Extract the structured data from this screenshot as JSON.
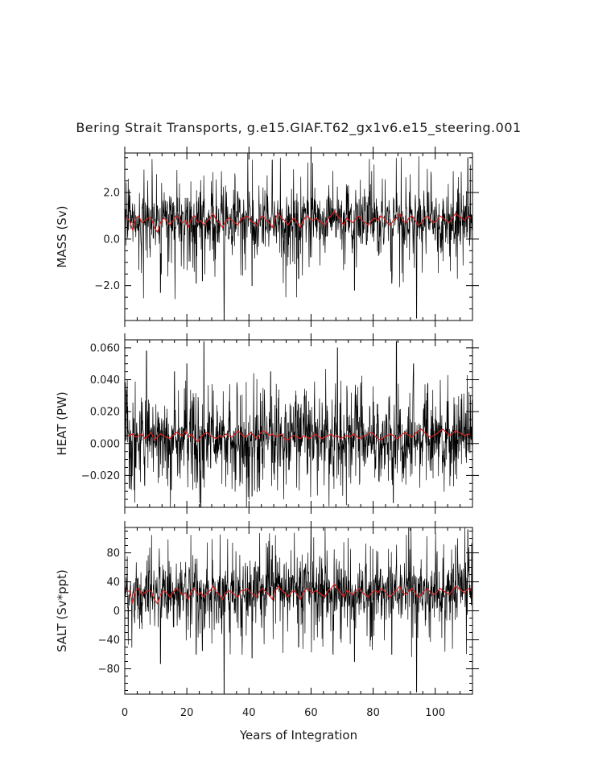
{
  "chart_data": {
    "type": "line",
    "title": "Bering Strait Transports, g.e15.GIAF.T62_gx1v6.e15_steering.001",
    "xlabel": "Years of Integration",
    "xlim": [
      0,
      112
    ],
    "x_ticks": [
      0,
      20,
      40,
      60,
      80,
      100
    ],
    "x_tick_labels": [
      "0",
      "20",
      "40",
      "60",
      "80",
      "100"
    ],
    "series_colors": {
      "monthly": "#000000",
      "annual": "#d42020"
    },
    "panels": [
      {
        "name": "mass",
        "ylabel": "MASS (Sv)",
        "ylim": [
          -3.5,
          3.7
        ],
        "y_ticks": [
          2.0,
          0.0,
          -2.0
        ],
        "y_tick_labels": [
          "2.0",
          "0.0",
          "−2.0"
        ],
        "mean": 0.8,
        "noise_std": 0.5,
        "spike_frequency": 0.18,
        "spikes": [
          {
            "x": 11.5,
            "y": -2.3
          },
          {
            "x": 23.0,
            "y": -1.9
          },
          {
            "x": 25.0,
            "y": -1.8
          },
          {
            "x": 32.0,
            "y": -3.4
          },
          {
            "x": 41.0,
            "y": -2.0
          },
          {
            "x": 47.5,
            "y": 3.4
          },
          {
            "x": 56.0,
            "y": -1.7
          },
          {
            "x": 60.0,
            "y": 3.6
          },
          {
            "x": 74.0,
            "y": -2.2
          },
          {
            "x": 86.0,
            "y": -1.9
          },
          {
            "x": 94.0,
            "y": -3.4
          },
          {
            "x": 110.5,
            "y": 3.5
          }
        ],
        "annual_values": [
          0.9,
          0.8,
          0.4,
          0.9,
          1.0,
          0.7,
          0.8,
          0.9,
          0.9,
          0.5,
          0.3,
          0.7,
          0.9,
          0.8,
          0.6,
          0.8,
          1.0,
          0.9,
          0.7,
          0.8,
          0.5,
          0.9,
          1.0,
          0.7,
          0.8,
          0.6,
          0.8,
          0.9,
          1.1,
          0.8,
          0.7,
          0.5,
          0.8,
          0.9,
          0.8,
          0.7,
          0.6,
          0.9,
          0.9,
          1.0,
          0.8,
          0.7,
          0.6,
          0.9,
          1.0,
          0.8,
          0.7,
          0.5,
          0.9,
          1.1,
          0.9,
          0.8,
          0.6,
          0.8,
          0.9,
          0.7,
          0.5,
          0.8,
          1.0,
          0.9,
          0.8,
          0.9,
          0.8,
          0.7,
          0.6,
          0.9,
          1.0,
          1.2,
          1.0,
          0.8,
          0.6,
          0.9,
          0.8,
          0.7,
          0.9,
          1.0,
          0.8,
          0.7,
          0.6,
          0.8,
          0.9,
          0.8,
          1.0,
          0.9,
          0.7,
          0.6,
          0.8,
          0.9,
          1.1,
          0.8,
          0.7,
          0.9,
          1.0,
          0.8,
          0.6,
          0.7,
          0.9,
          1.0,
          0.8,
          0.7,
          0.8,
          1.0,
          0.9,
          0.8,
          0.7,
          0.9,
          1.1,
          1.0,
          0.9,
          0.8,
          1.0,
          0.9
        ]
      },
      {
        "name": "heat",
        "ylabel": "HEAT (PW)",
        "ylim": [
          -0.04,
          0.065
        ],
        "y_ticks": [
          0.06,
          0.04,
          0.02,
          0.0,
          -0.02
        ],
        "y_tick_labels": [
          "0.060",
          "0.040",
          "0.020",
          "0.000",
          "−0.020"
        ],
        "mean": 0.004,
        "noise_std": 0.007,
        "spike_frequency": 0.3,
        "spikes": [
          {
            "x": 7.0,
            "y": 0.058
          },
          {
            "x": 16.0,
            "y": 0.045
          },
          {
            "x": 20.0,
            "y": 0.05
          },
          {
            "x": 24.5,
            "y": -0.04
          },
          {
            "x": 25.5,
            "y": 0.064
          },
          {
            "x": 15.0,
            "y": -0.029
          },
          {
            "x": 41.0,
            "y": -0.033
          },
          {
            "x": 47.0,
            "y": 0.045
          },
          {
            "x": 68.5,
            "y": 0.06
          },
          {
            "x": 86.5,
            "y": -0.037
          },
          {
            "x": 87.5,
            "y": 0.064
          },
          {
            "x": 93.0,
            "y": 0.05
          }
        ],
        "annual_values": [
          0.005,
          0.005,
          0.006,
          0.004,
          0.005,
          0.006,
          0.003,
          0.005,
          0.007,
          0.002,
          0.004,
          0.006,
          0.005,
          0.004,
          0.003,
          0.005,
          0.007,
          0.006,
          0.005,
          0.008,
          0.004,
          0.006,
          0.003,
          0.001,
          0.004,
          0.006,
          0.007,
          0.005,
          0.004,
          0.003,
          0.005,
          0.004,
          0.006,
          0.005,
          0.004,
          0.006,
          0.008,
          0.006,
          0.004,
          0.005,
          0.007,
          0.005,
          0.003,
          0.006,
          0.008,
          0.007,
          0.005,
          0.006,
          0.004,
          0.005,
          0.006,
          0.003,
          0.002,
          0.004,
          0.005,
          0.004,
          0.003,
          0.005,
          0.004,
          0.003,
          0.005,
          0.006,
          0.004,
          0.003,
          0.004,
          0.005,
          0.006,
          0.004,
          0.005,
          0.003,
          0.004,
          0.005,
          0.004,
          0.006,
          0.005,
          0.003,
          0.004,
          0.005,
          0.006,
          0.007,
          0.005,
          0.003,
          0.002,
          0.004,
          0.005,
          0.006,
          0.005,
          0.003,
          0.004,
          0.006,
          0.007,
          0.005,
          0.004,
          0.006,
          0.008,
          0.009,
          0.007,
          0.005,
          0.004,
          0.005,
          0.006,
          0.008,
          0.009,
          0.007,
          0.005,
          0.006,
          0.008,
          0.007,
          0.006,
          0.005,
          0.006,
          0.005
        ]
      },
      {
        "name": "salt",
        "ylabel": "SALT (Sv*ppt)",
        "ylim": [
          -115,
          115
        ],
        "y_ticks": [
          80,
          40,
          0,
          -40,
          -80
        ],
        "y_tick_labels": [
          "80",
          "40",
          "0",
          "−40",
          "−80"
        ],
        "mean": 27,
        "noise_std": 16,
        "spike_frequency": 0.18,
        "spikes": [
          {
            "x": 11.5,
            "y": -73
          },
          {
            "x": 23.0,
            "y": -60
          },
          {
            "x": 25.0,
            "y": -55
          },
          {
            "x": 32.0,
            "y": -112
          },
          {
            "x": 41.0,
            "y": -65
          },
          {
            "x": 47.5,
            "y": 90
          },
          {
            "x": 56.0,
            "y": -50
          },
          {
            "x": 60.0,
            "y": 112
          },
          {
            "x": 74.0,
            "y": -70
          },
          {
            "x": 86.0,
            "y": -60
          },
          {
            "x": 94.0,
            "y": -112
          },
          {
            "x": 110.5,
            "y": 112
          }
        ],
        "annual_values": [
          28,
          27,
          12,
          28,
          31,
          22,
          25,
          28,
          27,
          16,
          10,
          22,
          28,
          25,
          19,
          25,
          31,
          28,
          22,
          25,
          16,
          28,
          31,
          22,
          25,
          19,
          25,
          28,
          34,
          25,
          22,
          16,
          25,
          28,
          25,
          22,
          19,
          28,
          28,
          31,
          25,
          22,
          19,
          28,
          31,
          25,
          22,
          16,
          28,
          34,
          28,
          25,
          19,
          25,
          28,
          22,
          16,
          25,
          31,
          28,
          25,
          28,
          25,
          22,
          19,
          28,
          31,
          37,
          31,
          25,
          19,
          28,
          25,
          22,
          28,
          31,
          25,
          22,
          19,
          25,
          28,
          25,
          31,
          28,
          22,
          19,
          25,
          28,
          34,
          25,
          22,
          28,
          31,
          25,
          19,
          22,
          28,
          31,
          25,
          22,
          25,
          31,
          28,
          25,
          22,
          28,
          34,
          31,
          28,
          25,
          31,
          28
        ]
      }
    ]
  }
}
